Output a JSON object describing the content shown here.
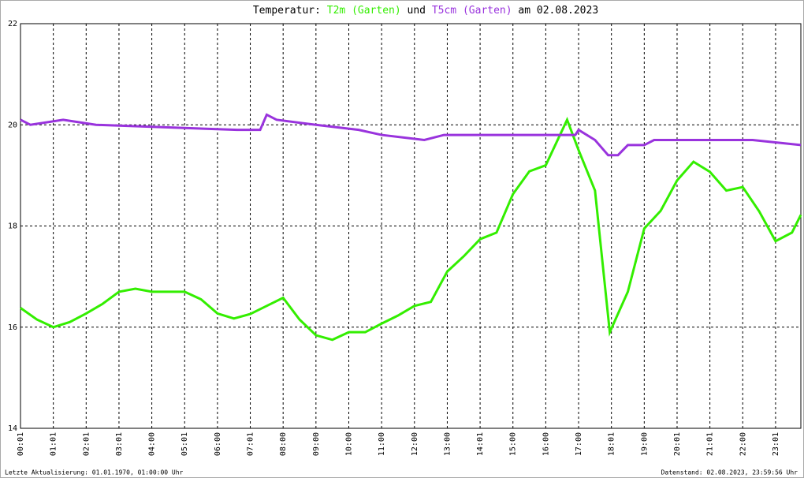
{
  "chart_data": {
    "type": "line",
    "title_prefix": "Temperatur:",
    "title_joiner": "und",
    "title_suffix": "am 02.08.2023",
    "footer_left": "Letzte Aktualisierung: 01.01.1970, 01:00:00 Uhr",
    "footer_right": "Datenstand: 02.08.2023, 23:59:56 Uhr",
    "xlim": [
      0,
      23.77
    ],
    "xticks": [
      {
        "value": 0,
        "label": "00:01"
      },
      {
        "value": 1,
        "label": "01:01"
      },
      {
        "value": 2,
        "label": "02:01"
      },
      {
        "value": 3,
        "label": "03:01"
      },
      {
        "value": 4,
        "label": "04:00"
      },
      {
        "value": 5,
        "label": "05:01"
      },
      {
        "value": 6,
        "label": "06:00"
      },
      {
        "value": 7,
        "label": "07:01"
      },
      {
        "value": 8,
        "label": "08:00"
      },
      {
        "value": 9,
        "label": "09:00"
      },
      {
        "value": 10,
        "label": "10:00"
      },
      {
        "value": 11,
        "label": "11:00"
      },
      {
        "value": 12,
        "label": "12:00"
      },
      {
        "value": 13,
        "label": "13:00"
      },
      {
        "value": 14,
        "label": "14:01"
      },
      {
        "value": 15,
        "label": "15:00"
      },
      {
        "value": 16,
        "label": "16:00"
      },
      {
        "value": 17,
        "label": "17:00"
      },
      {
        "value": 18,
        "label": "18:01"
      },
      {
        "value": 19,
        "label": "19:00"
      },
      {
        "value": 20,
        "label": "20:01"
      },
      {
        "value": 21,
        "label": "21:01"
      },
      {
        "value": 22,
        "label": "22:00"
      },
      {
        "value": 23,
        "label": "23:01"
      }
    ],
    "ylim": [
      14,
      22
    ],
    "yticks": [
      14,
      16,
      18,
      20,
      22
    ],
    "grid": true,
    "series": [
      {
        "name": "T2m (Garten)",
        "color": "#33ee00",
        "x": [
          0,
          0.5,
          1,
          1.5,
          2,
          2.5,
          3,
          3.5,
          4,
          4.5,
          5,
          5.5,
          6,
          6.5,
          7,
          7.5,
          8,
          8.5,
          9,
          9.5,
          10,
          10.5,
          11,
          11.5,
          12,
          12.5,
          13,
          13.5,
          14,
          14.5,
          15,
          15.5,
          16,
          16.65,
          17,
          17.5,
          17.95,
          18.5,
          19,
          19.5,
          20,
          20.5,
          21,
          21.5,
          22,
          22.5,
          23,
          23.5,
          23.77
        ],
        "values": [
          16.38,
          16.15,
          16.0,
          16.1,
          16.27,
          16.46,
          16.7,
          16.76,
          16.7,
          16.7,
          16.7,
          16.55,
          16.27,
          16.17,
          16.26,
          16.42,
          16.58,
          16.15,
          15.84,
          15.75,
          15.9,
          15.9,
          16.07,
          16.23,
          16.42,
          16.5,
          17.1,
          17.4,
          17.74,
          17.87,
          18.63,
          19.08,
          19.2,
          20.1,
          19.5,
          18.7,
          15.9,
          16.7,
          17.95,
          18.3,
          18.9,
          19.27,
          19.07,
          18.7,
          18.77,
          18.29,
          17.7,
          17.87,
          18.22
        ]
      },
      {
        "name": "T5cm (Garten)",
        "color": "#9933dd",
        "x": [
          0,
          0.3,
          1.3,
          2.3,
          6.6,
          7.3,
          7.5,
          7.8,
          9.0,
          10.3,
          11.0,
          12.3,
          12.9,
          16.9,
          17.0,
          17.5,
          17.9,
          18.2,
          18.5,
          19.0,
          19.3,
          22.3,
          23.77
        ],
        "values": [
          20.1,
          20.0,
          20.1,
          20.0,
          19.9,
          19.9,
          20.2,
          20.1,
          20.0,
          19.9,
          19.8,
          19.7,
          19.8,
          19.8,
          19.9,
          19.7,
          19.4,
          19.4,
          19.6,
          19.6,
          19.7,
          19.7,
          19.6
        ]
      }
    ]
  }
}
